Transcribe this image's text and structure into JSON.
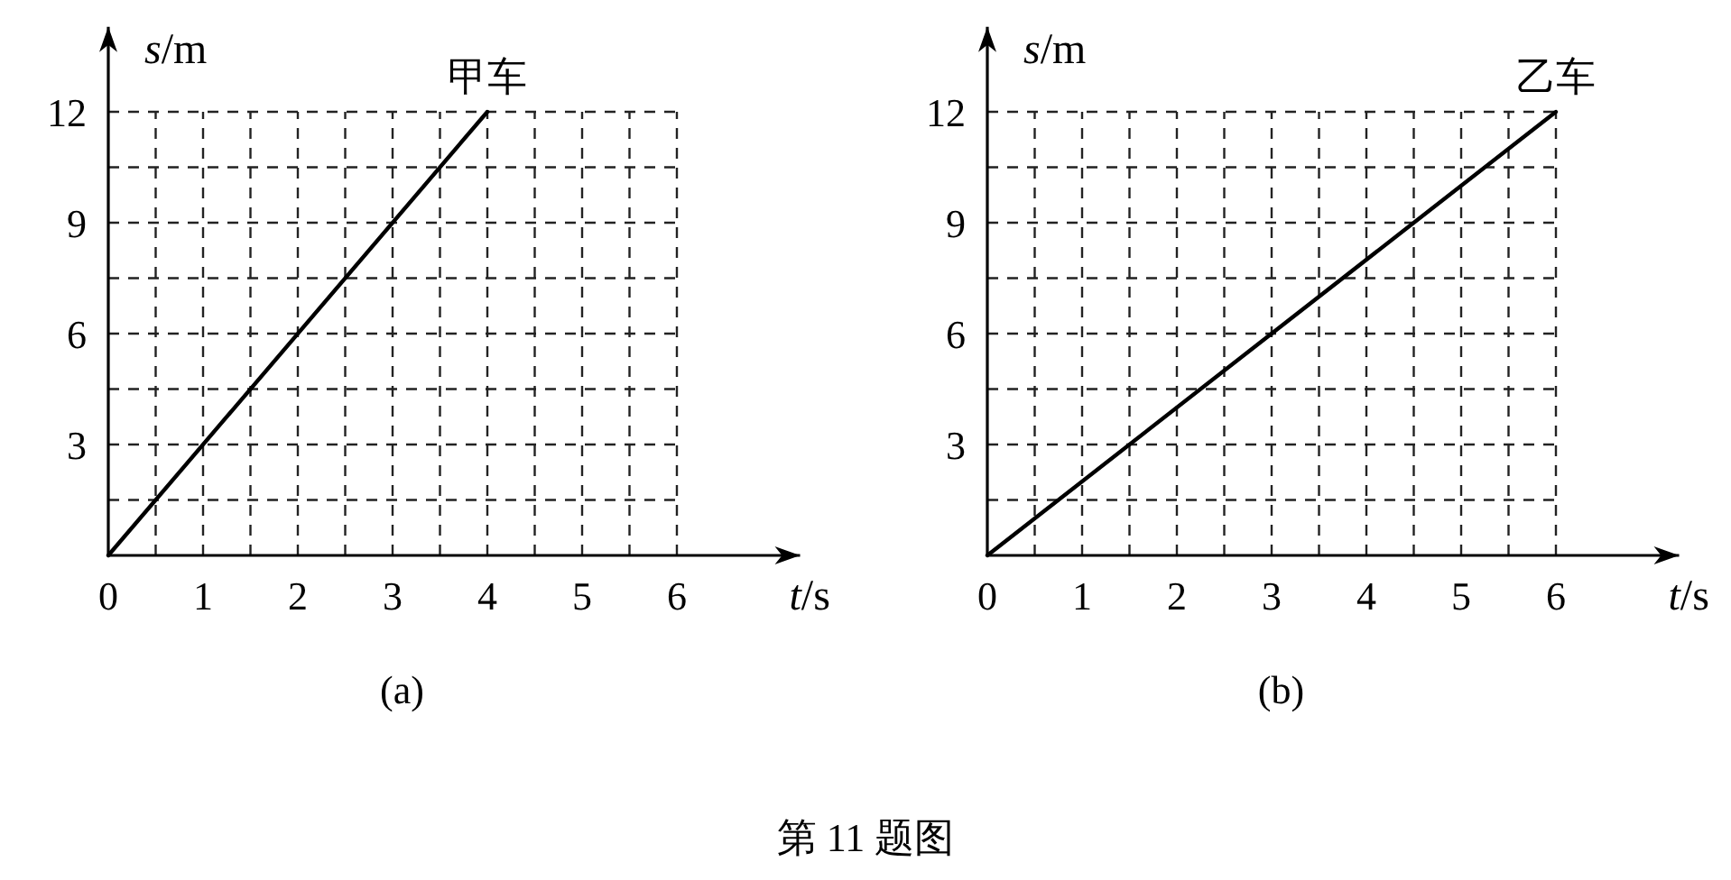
{
  "chart_data": [
    {
      "type": "line",
      "xlabel": "*t*/s",
      "ylabel": "*s*/m",
      "xlim": [
        0,
        7.3
      ],
      "ylim": [
        0,
        14.3
      ],
      "xticks": [
        0,
        {
          "value": 0.5,
          "label": null
        },
        1,
        {
          "value": 1.5,
          "label": null
        },
        2,
        {
          "value": 2.5,
          "label": null
        },
        3,
        {
          "value": 3.5,
          "label": null
        },
        4,
        {
          "value": 4.5,
          "label": null
        },
        5,
        {
          "value": 5.5,
          "label": null
        },
        6
      ],
      "yticks": [
        {
          "value": 0,
          "label": null
        },
        {
          "value": 1.5,
          "label": null
        },
        3,
        {
          "value": 4.5,
          "label": null
        },
        6,
        {
          "value": 7.5,
          "label": null
        },
        9,
        {
          "value": 10.5,
          "label": null
        },
        12
      ],
      "grid": true,
      "marker": "none",
      "line_style": "solid",
      "series": [
        {
          "color": "#000000",
          "x": [
            0,
            4
          ],
          "values": [
            0,
            12
          ]
        }
      ],
      "annotations": [
        {
          "text": "甲车",
          "x": 4,
          "y": 12
        },
        "(a)"
      ]
    },
    {
      "type": "line",
      "xlabel": "*t*/s",
      "ylabel": "*s*/m",
      "xlim": [
        0,
        7.3
      ],
      "ylim": [
        0,
        14.3
      ],
      "xticks": [
        0,
        {
          "value": 0.5,
          "label": null
        },
        1,
        {
          "value": 1.5,
          "label": null
        },
        2,
        {
          "value": 2.5,
          "label": null
        },
        3,
        {
          "value": 3.5,
          "label": null
        },
        4,
        {
          "value": 4.5,
          "label": null
        },
        5,
        {
          "value": 5.5,
          "label": null
        },
        6
      ],
      "yticks": [
        {
          "value": 0,
          "label": null
        },
        {
          "value": 1.5,
          "label": null
        },
        3,
        {
          "value": 4.5,
          "label": null
        },
        6,
        {
          "value": 7.5,
          "label": null
        },
        9,
        {
          "value": 10.5,
          "label": null
        },
        12
      ],
      "grid": true,
      "marker": "none",
      "line_style": "solid",
      "series": [
        {
          "color": "#000000",
          "x": [
            0,
            6
          ],
          "values": [
            0,
            12
          ]
        }
      ],
      "annotations": [
        {
          "text": "乙车",
          "x": 6,
          "y": 12
        },
        "(b)",
        "第 11 题图"
      ]
    }
  ]
}
